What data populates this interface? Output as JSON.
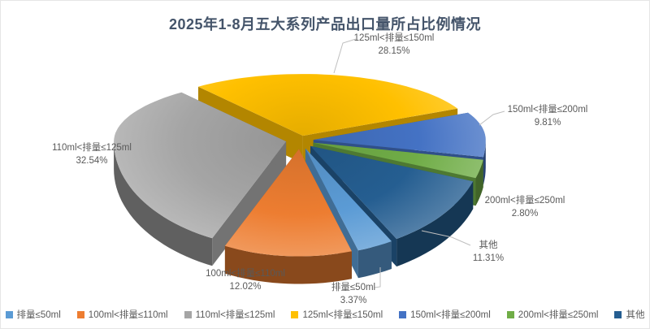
{
  "page": {
    "background": "#FFFFFF",
    "border_color": "#E6E6E6"
  },
  "chart_data": {
    "type": "pie",
    "style": "3d-exploded",
    "title": "2025年1-8月五大系列产品出口量所占比例情况",
    "title_color": "#44546A",
    "label_color": "#595959",
    "leader_line_color": "#BFBFBF",
    "legend_position": "bottom",
    "unit": "%",
    "start_angle_deg": 150,
    "clockwise": true,
    "series": [
      {
        "label": "排量≤50ml",
        "value": 3.37,
        "percent_text": "3.37%",
        "color": "#5B9BD5"
      },
      {
        "label": "100ml<排量≤110ml",
        "value": 12.02,
        "percent_text": "12.02%",
        "color": "#ED7D31"
      },
      {
        "label": "110ml<排量≤125ml",
        "value": 32.54,
        "percent_text": "32.54%",
        "color": "#A5A5A5"
      },
      {
        "label": "125ml<排量≤150ml",
        "value": 28.15,
        "percent_text": "28.15%",
        "color": "#FFC000"
      },
      {
        "label": "150ml<排量≤200ml",
        "value": 9.81,
        "percent_text": "9.81%",
        "color": "#4472C4"
      },
      {
        "label": "200ml<排量≤250ml",
        "value": 2.8,
        "percent_text": "2.80%",
        "color": "#70AD47"
      },
      {
        "label": "其他",
        "value": 11.31,
        "percent_text": "11.31%",
        "color": "#255E91"
      }
    ]
  }
}
